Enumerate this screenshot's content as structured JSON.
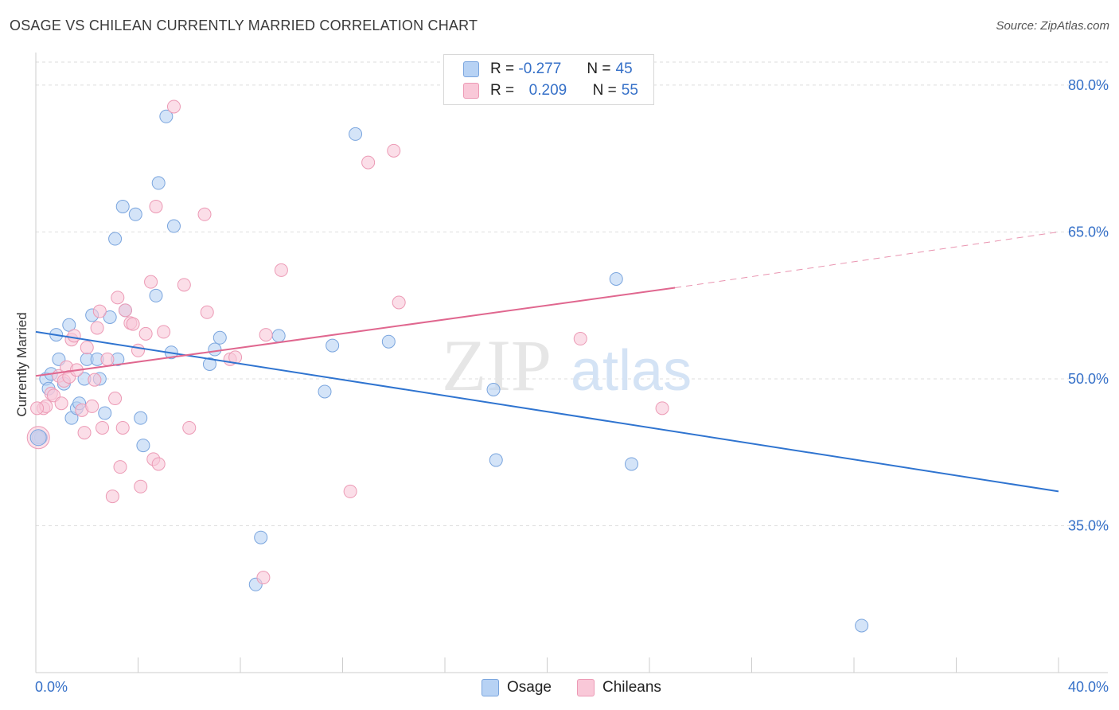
{
  "title": "OSAGE VS CHILEAN CURRENTLY MARRIED CORRELATION CHART",
  "source": "Source: ZipAtlas.com",
  "watermark": {
    "part1": "ZIP",
    "part2": "atlas"
  },
  "legend": {
    "rows": [
      {
        "r_label": "R =",
        "r_value": "-0.277",
        "n_label": "N =",
        "n_value": "45"
      },
      {
        "r_label": "R =",
        "r_value": "0.209",
        "n_label": "N =",
        "n_value": "55"
      }
    ]
  },
  "bottom_legend": [
    "Osage",
    "Chileans"
  ],
  "colors": {
    "osage_fill": "#b7d2f4",
    "osage_stroke": "#7aa5de",
    "osage_line": "#2f74d0",
    "chilean_fill": "#f9c8d8",
    "chilean_stroke": "#ec9ab5",
    "chilean_line": "#e0678f",
    "grid": "#dedede",
    "axis": "#cccccc",
    "tick_label": "#3570c8"
  },
  "chart_data": {
    "type": "scatter",
    "title": "OSAGE VS CHILEAN CURRENTLY MARRIED CORRELATION CHART",
    "xlabel": "",
    "ylabel": "Currently Married",
    "xlim": [
      0,
      40
    ],
    "ylim": [
      20,
      83
    ],
    "x_tick_labels": [
      "0.0%",
      "40.0%"
    ],
    "y_ticks": [
      35,
      50,
      65,
      80
    ],
    "y_tick_labels": [
      "35.0%",
      "50.0%",
      "65.0%",
      "80.0%"
    ],
    "grid": true,
    "legend_position": "top-center",
    "series": [
      {
        "name": "Osage",
        "r": -0.277,
        "n": 45,
        "trend": {
          "x": [
            0,
            40
          ],
          "y": [
            54.8,
            38.5
          ]
        },
        "points": [
          [
            0.2,
            44.0
          ],
          [
            0.4,
            50.0
          ],
          [
            0.5,
            49.0
          ],
          [
            0.6,
            50.5
          ],
          [
            0.8,
            54.5
          ],
          [
            0.9,
            52.0
          ],
          [
            1.1,
            49.5
          ],
          [
            1.3,
            55.5
          ],
          [
            1.4,
            46.0
          ],
          [
            1.6,
            47.0
          ],
          [
            1.7,
            47.5
          ],
          [
            1.9,
            50.0
          ],
          [
            2.0,
            52.0
          ],
          [
            2.2,
            56.5
          ],
          [
            2.4,
            52.0
          ],
          [
            2.5,
            50.0
          ],
          [
            2.7,
            46.5
          ],
          [
            2.9,
            56.3
          ],
          [
            3.1,
            64.3
          ],
          [
            3.2,
            52.0
          ],
          [
            3.4,
            67.6
          ],
          [
            3.5,
            57.0
          ],
          [
            3.9,
            66.8
          ],
          [
            4.1,
            46.0
          ],
          [
            4.2,
            43.2
          ],
          [
            4.7,
            58.5
          ],
          [
            4.8,
            70.0
          ],
          [
            5.1,
            76.8
          ],
          [
            5.3,
            52.7
          ],
          [
            5.4,
            65.6
          ],
          [
            6.8,
            51.5
          ],
          [
            7.0,
            53.0
          ],
          [
            7.2,
            54.2
          ],
          [
            8.6,
            29.0
          ],
          [
            8.8,
            33.8
          ],
          [
            9.5,
            54.4
          ],
          [
            11.3,
            48.7
          ],
          [
            11.6,
            53.4
          ],
          [
            12.5,
            75.0
          ],
          [
            13.8,
            53.8
          ],
          [
            17.9,
            48.9
          ],
          [
            18.0,
            41.7
          ],
          [
            22.7,
            60.2
          ],
          [
            23.3,
            41.3
          ],
          [
            32.3,
            24.8
          ]
        ]
      },
      {
        "name": "Chileans",
        "r": 0.209,
        "n": 55,
        "trend": {
          "x": [
            0,
            25
          ],
          "y": [
            50.3,
            59.3
          ]
        },
        "trend_dashed": {
          "x": [
            25,
            40
          ],
          "y": [
            59.3,
            65.0
          ]
        },
        "points": [
          [
            0.1,
            44.0
          ],
          [
            0.3,
            47.0
          ],
          [
            0.4,
            47.2
          ],
          [
            0.6,
            48.5
          ],
          [
            0.7,
            48.3
          ],
          [
            0.9,
            50.3
          ],
          [
            1.0,
            47.5
          ],
          [
            1.1,
            49.8
          ],
          [
            1.2,
            51.2
          ],
          [
            1.3,
            50.2
          ],
          [
            1.4,
            54.0
          ],
          [
            1.5,
            54.4
          ],
          [
            1.6,
            50.9
          ],
          [
            1.8,
            46.8
          ],
          [
            1.9,
            44.5
          ],
          [
            2.0,
            53.2
          ],
          [
            2.2,
            47.2
          ],
          [
            2.3,
            49.9
          ],
          [
            2.4,
            55.2
          ],
          [
            2.5,
            56.9
          ],
          [
            2.6,
            45.0
          ],
          [
            2.8,
            52.0
          ],
          [
            3.0,
            38.0
          ],
          [
            3.1,
            48.0
          ],
          [
            3.2,
            58.3
          ],
          [
            3.3,
            41.0
          ],
          [
            3.4,
            45.0
          ],
          [
            3.5,
            57.0
          ],
          [
            3.7,
            55.7
          ],
          [
            3.8,
            55.6
          ],
          [
            4.0,
            52.9
          ],
          [
            4.1,
            39.0
          ],
          [
            4.3,
            54.6
          ],
          [
            4.5,
            59.9
          ],
          [
            4.6,
            41.8
          ],
          [
            4.7,
            67.6
          ],
          [
            4.8,
            41.3
          ],
          [
            5.0,
            54.8
          ],
          [
            5.4,
            77.8
          ],
          [
            5.8,
            59.6
          ],
          [
            6.0,
            45.0
          ],
          [
            6.6,
            66.8
          ],
          [
            6.7,
            56.8
          ],
          [
            7.6,
            52.0
          ],
          [
            7.8,
            52.2
          ],
          [
            8.9,
            29.7
          ],
          [
            9.0,
            54.5
          ],
          [
            9.6,
            61.1
          ],
          [
            12.3,
            38.5
          ],
          [
            13.0,
            72.1
          ],
          [
            14.0,
            73.3
          ],
          [
            14.2,
            57.8
          ],
          [
            21.3,
            54.1
          ],
          [
            24.5,
            47.0
          ],
          [
            0.05,
            47.0
          ]
        ]
      }
    ]
  }
}
